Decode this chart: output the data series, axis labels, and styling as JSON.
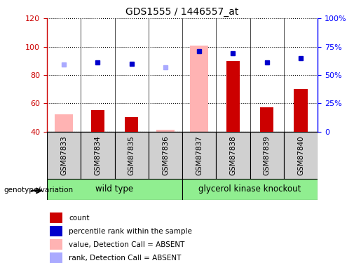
{
  "title": "GDS1555 / 1446557_at",
  "samples": [
    "GSM87833",
    "GSM87834",
    "GSM87835",
    "GSM87836",
    "GSM87837",
    "GSM87838",
    "GSM87839",
    "GSM87840"
  ],
  "count_values": [
    null,
    55,
    50,
    null,
    null,
    90,
    57,
    70
  ],
  "count_absent": [
    52,
    null,
    null,
    41,
    101,
    null,
    null,
    null
  ],
  "rank_values": [
    null,
    61,
    60,
    null,
    71,
    69,
    61,
    65
  ],
  "rank_absent": [
    59,
    null,
    null,
    57,
    null,
    null,
    null,
    null
  ],
  "ylim": [
    40,
    120
  ],
  "y2lim": [
    0,
    100
  ],
  "yticks": [
    40,
    60,
    80,
    100,
    120
  ],
  "y2ticks": [
    0,
    25,
    50,
    75,
    100
  ],
  "group1_label": "wild type",
  "group2_label": "glycerol kinase knockout",
  "genotype_label": "genotype/variation",
  "legend_labels": [
    "count",
    "percentile rank within the sample",
    "value, Detection Call = ABSENT",
    "rank, Detection Call = ABSENT"
  ],
  "bar_color_present": "#cc0000",
  "bar_color_absent": "#ffb3b3",
  "rank_color_present": "#0000cc",
  "rank_color_absent": "#aaaaff",
  "left_axis_color": "#cc0000",
  "right_axis_color": "#0000ff",
  "sample_bg": "#d0d0d0",
  "group_bg": "#90ee90",
  "bar_width": 0.4,
  "rank_marker_size": 5
}
